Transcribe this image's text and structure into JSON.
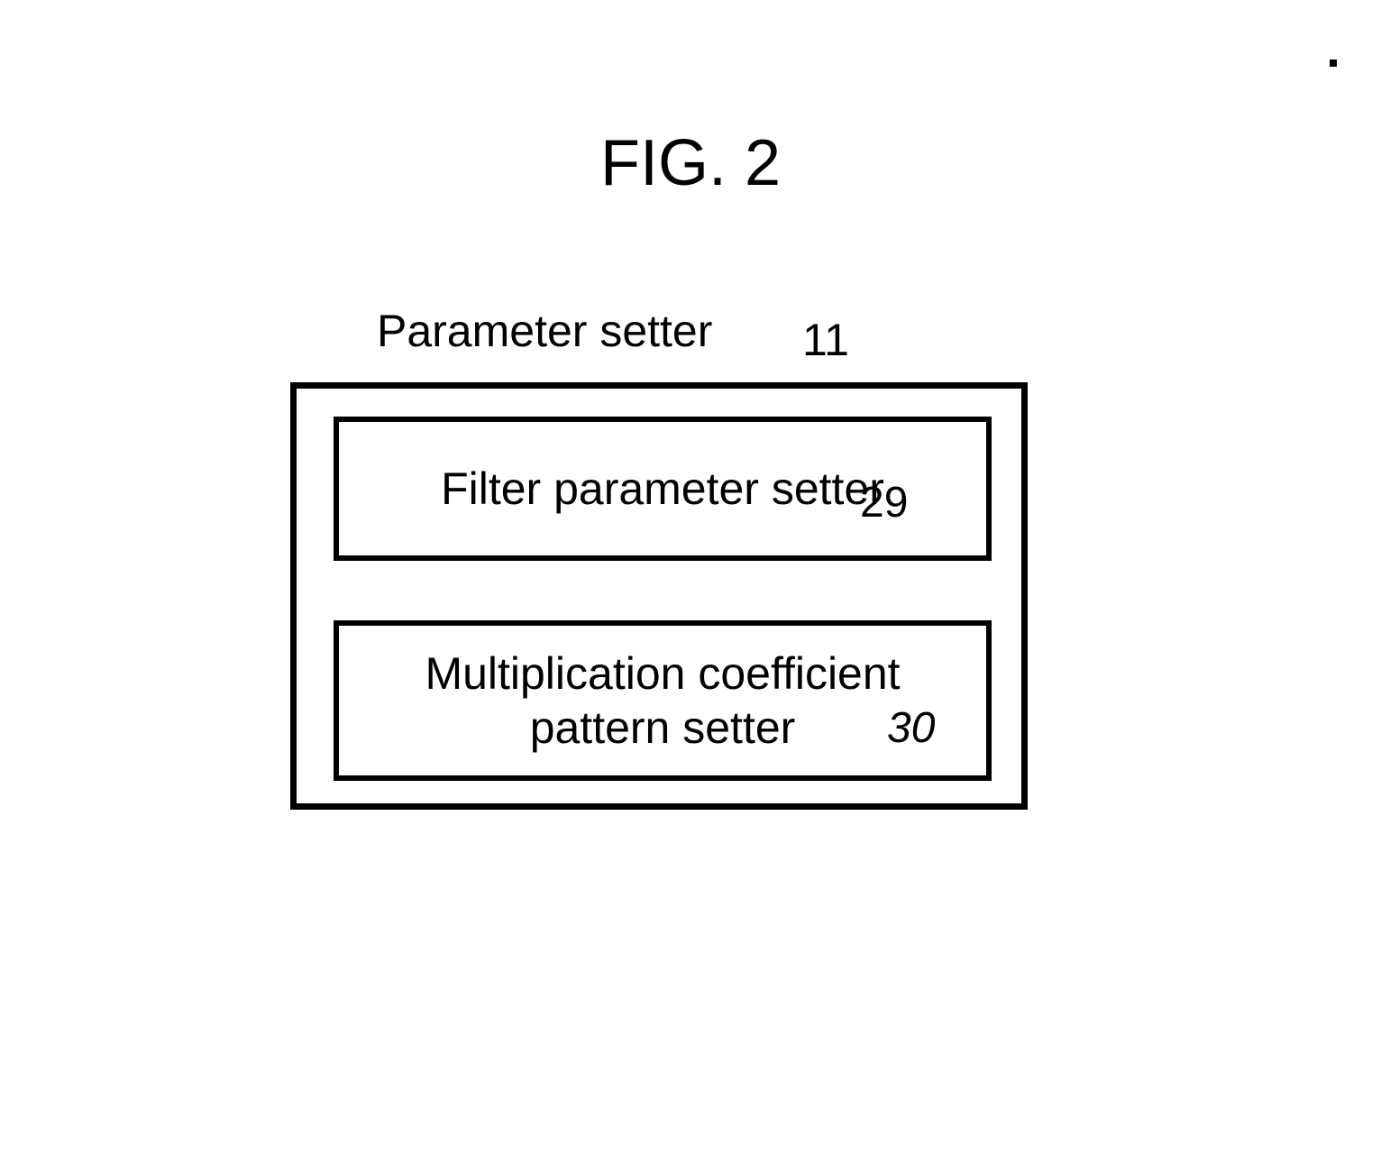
{
  "figure": {
    "title": "FIG. 2",
    "title_fontsize": 72,
    "background_color": "#ffffff",
    "text_color": "#000000",
    "border_color": "#000000"
  },
  "parameter_setter": {
    "label": "Parameter setter",
    "ref": "11",
    "outer_border_width": 7,
    "children": [
      {
        "label": "Filter parameter setter",
        "ref": "29",
        "border_width": 6
      },
      {
        "label_line1": "Multiplication coefficient",
        "label_line2": "pattern setter",
        "ref": "30",
        "border_width": 6
      }
    ]
  }
}
